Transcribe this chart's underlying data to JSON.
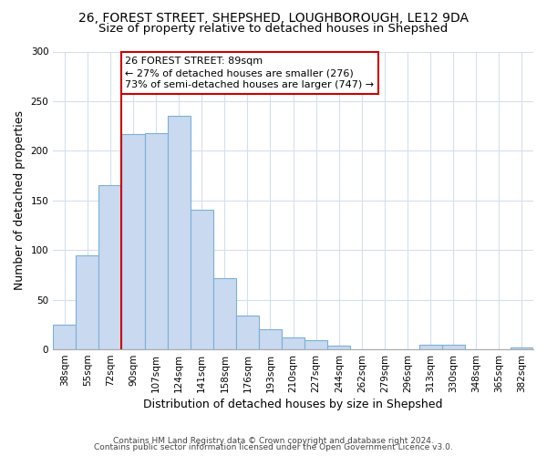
{
  "title": "26, FOREST STREET, SHEPSHED, LOUGHBOROUGH, LE12 9DA",
  "subtitle": "Size of property relative to detached houses in Shepshed",
  "xlabel": "Distribution of detached houses by size in Shepshed",
  "ylabel": "Number of detached properties",
  "bar_labels": [
    "38sqm",
    "55sqm",
    "72sqm",
    "90sqm",
    "107sqm",
    "124sqm",
    "141sqm",
    "158sqm",
    "176sqm",
    "193sqm",
    "210sqm",
    "227sqm",
    "244sqm",
    "262sqm",
    "279sqm",
    "296sqm",
    "313sqm",
    "330sqm",
    "348sqm",
    "365sqm",
    "382sqm"
  ],
  "bar_values": [
    25,
    95,
    165,
    217,
    218,
    235,
    141,
    72,
    34,
    20,
    12,
    9,
    4,
    0,
    0,
    0,
    5,
    5,
    0,
    0,
    2
  ],
  "bar_color": "#c9d9f0",
  "bar_edge_color": "#7ab0d8",
  "vline_x_index": 3,
  "vline_color": "#cc0000",
  "annotation_text": "26 FOREST STREET: 89sqm\n← 27% of detached houses are smaller (276)\n73% of semi-detached houses are larger (747) →",
  "annotation_box_edge_color": "#cc0000",
  "annotation_box_face_color": "#ffffff",
  "ylim": [
    0,
    300
  ],
  "yticks": [
    0,
    50,
    100,
    150,
    200,
    250,
    300
  ],
  "footer_line1": "Contains HM Land Registry data © Crown copyright and database right 2024.",
  "footer_line2": "Contains public sector information licensed under the Open Government Licence v3.0.",
  "background_color": "#ffffff",
  "grid_color": "#d4dfee",
  "title_fontsize": 10,
  "subtitle_fontsize": 9.5,
  "axis_label_fontsize": 9,
  "tick_fontsize": 7.5,
  "annotation_fontsize": 8,
  "footer_fontsize": 6.5
}
